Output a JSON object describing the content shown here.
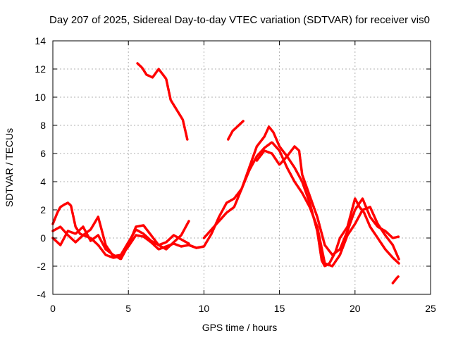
{
  "chart_data": {
    "type": "line",
    "title": "Day 207 of 2025, Sidereal Day-to-day VTEC variation (SDTVAR) for receiver vis0",
    "xlabel": "GPS time / hours",
    "ylabel": "SDTVAR / TECUs",
    "xlim": [
      0,
      25
    ],
    "ylim": [
      -4,
      14
    ],
    "xticks": [
      0,
      5,
      10,
      15,
      20,
      25
    ],
    "yticks": [
      -4,
      -2,
      0,
      2,
      4,
      6,
      8,
      10,
      12,
      14
    ],
    "grid": true,
    "legend": "none",
    "color": "#ff0000",
    "series": [
      {
        "name": "trace-1",
        "x": [
          0.0,
          0.3,
          0.5,
          0.8,
          1.0,
          1.2,
          1.5,
          1.8,
          2.0,
          2.5,
          3.0,
          3.5,
          4.0,
          4.5,
          5.0,
          5.5,
          6.0,
          6.5,
          7.0,
          7.5,
          8.0,
          8.5,
          9.0,
          9.5,
          10.0
        ],
        "y": [
          1.0,
          1.8,
          2.2,
          2.4,
          2.5,
          2.3,
          0.8,
          0.3,
          0.2,
          0.0,
          -0.5,
          -1.2,
          -1.4,
          -1.3,
          -0.6,
          0.2,
          0.1,
          -0.3,
          -0.8,
          -0.6,
          -0.4,
          -0.6,
          -0.5,
          -0.7,
          -0.6
        ]
      },
      {
        "name": "trace-2",
        "x": [
          0.0,
          0.5,
          1.0,
          1.5,
          2.0,
          2.5,
          3.0,
          3.5,
          4.0,
          4.5,
          5.0,
          5.5,
          6.0,
          6.5,
          7.0,
          7.5,
          8.0,
          8.5,
          9.0
        ],
        "y": [
          0.5,
          0.8,
          0.2,
          -0.3,
          0.2,
          0.6,
          1.5,
          -0.5,
          -1.3,
          -1.2,
          -0.3,
          0.6,
          0.3,
          -0.2,
          -0.5,
          -0.8,
          -0.3,
          0.2,
          1.2
        ]
      },
      {
        "name": "trace-3",
        "x": [
          0.0,
          0.5,
          1.0,
          1.5,
          2.0,
          2.5,
          3.0,
          3.5,
          4.0,
          4.5,
          5.0,
          5.5,
          6.0,
          6.5,
          7.0,
          7.5,
          8.0,
          8.5,
          9.0
        ],
        "y": [
          0.0,
          -0.5,
          0.5,
          0.3,
          0.8,
          -0.2,
          0.2,
          -0.8,
          -1.2,
          -1.5,
          -0.5,
          0.8,
          0.9,
          0.2,
          -0.5,
          -0.3,
          0.2,
          -0.1,
          -0.4
        ]
      },
      {
        "name": "trace-4",
        "x": [
          5.6,
          5.9,
          6.2,
          6.6,
          7.0,
          7.5,
          7.8,
          8.2,
          8.6,
          8.9
        ],
        "y": [
          12.4,
          12.1,
          11.6,
          11.4,
          12.0,
          11.3,
          9.8,
          9.1,
          8.4,
          7.0
        ]
      },
      {
        "name": "trace-5",
        "x": [
          9.0,
          9.5,
          10.0,
          10.5,
          11.0,
          11.5,
          12.0,
          12.5,
          13.0,
          13.5,
          14.0,
          14.3,
          14.6,
          15.0,
          15.5,
          16.0,
          16.5,
          17.0,
          17.5,
          17.8,
          18.0,
          18.3,
          18.7,
          19.0,
          19.5,
          19.8,
          20.0,
          20.3,
          20.6,
          21.0,
          21.5,
          22.0,
          22.5,
          22.9
        ],
        "y": [
          -0.5,
          -0.7,
          -0.6,
          0.3,
          1.5,
          2.5,
          2.8,
          3.5,
          5.0,
          6.5,
          7.2,
          7.9,
          7.5,
          6.5,
          5.8,
          5.0,
          4.0,
          2.5,
          0.5,
          -1.6,
          -2.0,
          -1.8,
          -1.0,
          0.0,
          0.8,
          2.0,
          2.8,
          2.2,
          1.8,
          0.8,
          0.0,
          -0.8,
          -1.4,
          -1.8
        ]
      },
      {
        "name": "trace-6",
        "x": [
          10.0,
          10.5,
          11.0,
          11.5,
          12.0,
          12.5,
          13.0,
          13.5,
          14.0,
          14.5,
          15.0,
          15.5,
          16.0,
          16.5,
          17.0,
          17.5,
          18.0,
          18.5,
          19.0,
          19.5,
          20.0,
          20.5,
          21.0,
          21.5,
          22.0,
          22.5,
          22.9
        ],
        "y": [
          0.0,
          0.6,
          1.2,
          1.8,
          2.2,
          3.5,
          4.8,
          5.8,
          6.4,
          6.8,
          6.2,
          5.0,
          4.0,
          3.2,
          2.2,
          0.8,
          -1.8,
          -2.0,
          -1.2,
          0.2,
          1.0,
          2.0,
          2.2,
          1.0,
          0.2,
          -0.5,
          -1.5
        ]
      },
      {
        "name": "trace-7",
        "x": [
          13.5,
          14.0,
          14.5,
          15.0,
          15.5,
          16.0,
          16.3,
          16.5,
          17.0,
          17.5,
          18.0,
          18.5,
          19.0,
          19.5,
          20.0,
          20.5,
          21.0,
          21.5,
          22.0,
          22.5,
          22.9
        ],
        "y": [
          5.5,
          6.2,
          6.0,
          5.2,
          5.8,
          6.5,
          6.2,
          4.5,
          3.0,
          1.5,
          -0.5,
          -1.2,
          -0.8,
          0.5,
          2.0,
          2.8,
          1.5,
          0.8,
          0.5,
          0.0,
          0.1
        ]
      },
      {
        "name": "trace-8",
        "x": [
          11.6,
          11.9,
          12.2,
          12.6
        ],
        "y": [
          7.0,
          7.6,
          7.9,
          8.3
        ]
      },
      {
        "name": "trace-9",
        "x": [
          22.5,
          22.8,
          22.9
        ],
        "y": [
          -3.2,
          -2.8,
          -2.7
        ]
      }
    ]
  }
}
